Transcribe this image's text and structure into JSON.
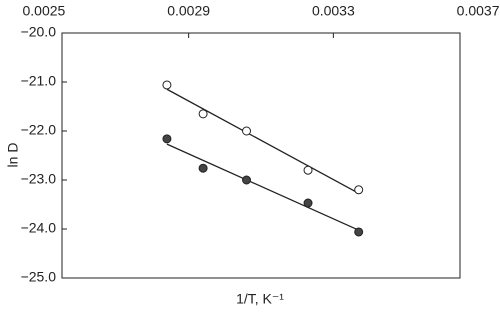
{
  "chart_data": {
    "type": "scatter",
    "x_label": "1/T, K⁻¹",
    "y_label": "ln D",
    "x": [
      0.00284,
      0.00294,
      0.00306,
      0.00323,
      0.00337
    ],
    "series": [
      {
        "color": "#222222",
        "marker": "open",
        "values": [
          -21.06,
          -21.65,
          -22.0,
          -22.8,
          -23.2
        ]
      },
      {
        "color": "#444444",
        "marker": "filled",
        "values": [
          -22.16,
          -22.76,
          -23.0,
          -23.47,
          -24.06
        ]
      }
    ],
    "fit_lines": true,
    "xlim": [
      0.00255,
      0.00365
    ],
    "xticks": [
      0.0025,
      0.0029,
      0.0033,
      0.0037
    ],
    "ylim": [
      -25,
      -20
    ],
    "yticks": [
      {
        "value": -20,
        "label": "−20.0"
      },
      {
        "value": -21,
        "label": "−21.0"
      },
      {
        "value": -22,
        "label": "−22.0"
      },
      {
        "value": -23,
        "label": "−23.0"
      },
      {
        "value": -24,
        "label": "−24.0"
      },
      {
        "value": -25,
        "label": "−25.0"
      }
    ]
  }
}
